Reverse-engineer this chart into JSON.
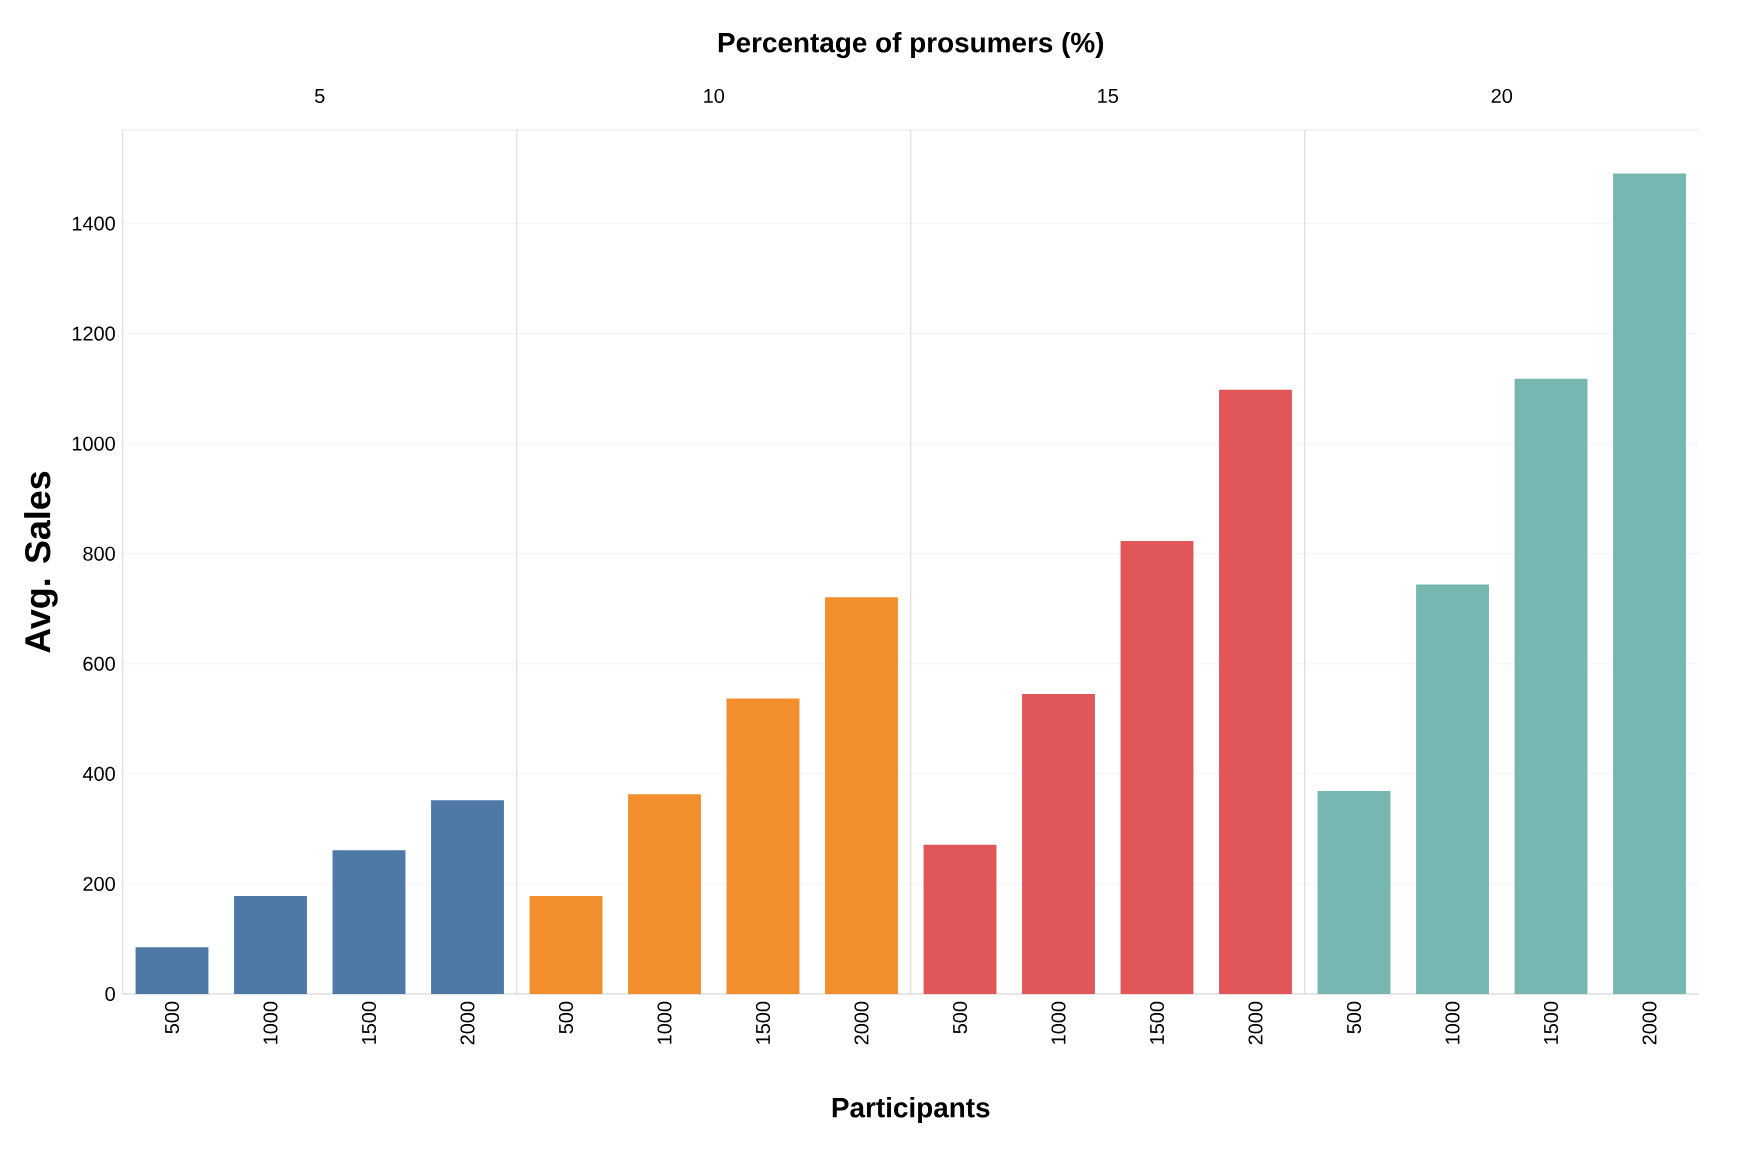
{
  "chart_data": [
    {
      "type": "bar",
      "title": "5",
      "ylabel": "Avg. Sales",
      "annotations": [
        "Percentage of prosumers (%)"
      ],
      "categories": [
        "500",
        "1000",
        "1500",
        "2000"
      ],
      "values": [
        85,
        178,
        261,
        352
      ],
      "color": "#4e79a7",
      "ylim": [
        0,
        1570
      ],
      "yticks": [
        0,
        200,
        400,
        600,
        800,
        1000,
        1200,
        1400
      ],
      "grid": "y"
    },
    {
      "type": "bar",
      "title": "10",
      "xlabel": "Participants",
      "categories": [
        "500",
        "1000",
        "1500",
        "2000"
      ],
      "values": [
        178,
        363,
        537,
        721
      ],
      "color": "#f28e2b",
      "ylim": [
        0,
        1570
      ],
      "yticks": [
        0,
        200,
        400,
        600,
        800,
        1000,
        1200,
        1400
      ],
      "grid": "y",
      "tick_labels": "x"
    },
    {
      "type": "bar",
      "title": "15",
      "categories": [
        "500",
        "1000",
        "1500",
        "2000"
      ],
      "values": [
        271,
        545,
        823,
        1098
      ],
      "color": "#e15759",
      "ylim": [
        0,
        1570
      ],
      "yticks": [
        0,
        200,
        400,
        600,
        800,
        1000,
        1200,
        1400
      ],
      "grid": "y",
      "tick_labels": "x"
    },
    {
      "type": "bar",
      "title": "20",
      "categories": [
        "500",
        "1000",
        "1500",
        "2000"
      ],
      "values": [
        369,
        744,
        1118,
        1491
      ],
      "color": "#76b7b2",
      "ylim": [
        0,
        1570
      ],
      "yticks": [
        0,
        200,
        400,
        600,
        800,
        1000,
        1200,
        1400
      ],
      "grid": "y",
      "tick_labels": "x"
    }
  ]
}
